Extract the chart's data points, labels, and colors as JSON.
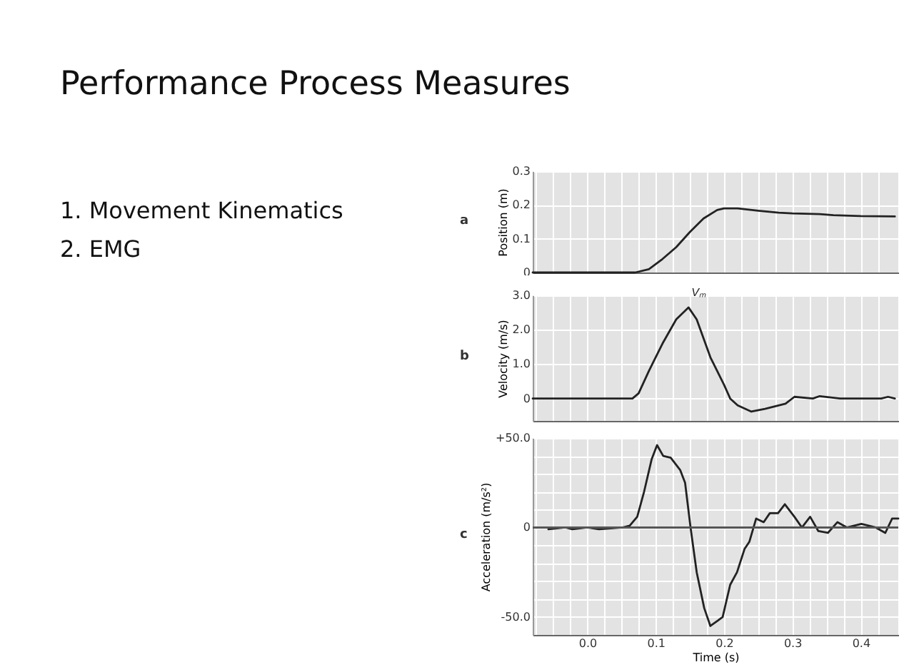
{
  "chart_data": [
    {
      "type": "line",
      "title": "Performance Process Measures",
      "annotations": [
        "1. Movement Kinematics",
        "2. EMG",
        "a"
      ],
      "ylabel": "Position (m)",
      "tick_labels": "y",
      "grid": true,
      "xlim": [
        -0.08,
        0.455
      ],
      "xticks": [
        {
          "value": -0.075,
          "label": null
        },
        {
          "value": -0.05,
          "label": null
        },
        {
          "value": -0.025,
          "label": null
        },
        0,
        {
          "value": 0.025,
          "label": null
        },
        {
          "value": 0.05,
          "label": null
        },
        {
          "value": 0.075,
          "label": null
        },
        0.1,
        {
          "value": 0.125,
          "label": null
        },
        {
          "value": 0.15,
          "label": null
        },
        {
          "value": 0.175,
          "label": null
        },
        0.2,
        {
          "value": 0.225,
          "label": null
        },
        {
          "value": 0.25,
          "label": null
        },
        {
          "value": 0.275,
          "label": null
        },
        0.3,
        {
          "value": 0.325,
          "label": null
        },
        {
          "value": 0.35,
          "label": null
        },
        {
          "value": 0.375,
          "label": null
        },
        0.4,
        {
          "value": 0.425,
          "label": null
        }
      ],
      "ylim": [
        0,
        0.3
      ],
      "yticks": [
        0,
        0.1,
        0.2,
        0.3
      ],
      "series": [
        {
          "color": "#222222",
          "x": [
            -0.08,
            0.07,
            0.09,
            0.11,
            0.13,
            0.15,
            0.17,
            0.19,
            0.2,
            0.22,
            0.25,
            0.28,
            0.3,
            0.34,
            0.36,
            0.4,
            0.45
          ],
          "values": [
            0,
            0,
            0.01,
            0.04,
            0.075,
            0.12,
            0.16,
            0.185,
            0.19,
            0.19,
            0.183,
            0.177,
            0.175,
            0.173,
            0.17,
            0.167,
            0.166
          ]
        }
      ]
    },
    {
      "type": "line",
      "annotations": [
        {
          "text": "Vₘ",
          "x": 0.148,
          "y": 2.65
        },
        "b"
      ],
      "ylabel": "Velocity (m/s)",
      "tick_labels": "y",
      "grid": true,
      "xlim": [
        -0.08,
        0.455
      ],
      "xticks": [
        {
          "value": -0.075,
          "label": null
        },
        {
          "value": -0.05,
          "label": null
        },
        {
          "value": -0.025,
          "label": null
        },
        0,
        {
          "value": 0.025,
          "label": null
        },
        {
          "value": 0.05,
          "label": null
        },
        {
          "value": 0.075,
          "label": null
        },
        0.1,
        {
          "value": 0.125,
          "label": null
        },
        {
          "value": 0.15,
          "label": null
        },
        {
          "value": 0.175,
          "label": null
        },
        0.2,
        {
          "value": 0.225,
          "label": null
        },
        {
          "value": 0.25,
          "label": null
        },
        {
          "value": 0.275,
          "label": null
        },
        0.3,
        {
          "value": 0.325,
          "label": null
        },
        {
          "value": 0.35,
          "label": null
        },
        {
          "value": 0.375,
          "label": null
        },
        0.4,
        {
          "value": 0.425,
          "label": null
        }
      ],
      "ylim": [
        -0.65,
        3.0
      ],
      "yticks": [
        0,
        {
          "value": 1,
          "label": "1.0"
        },
        {
          "value": 2,
          "label": "2.0"
        },
        {
          "value": 3,
          "label": "3.0"
        }
      ],
      "series": [
        {
          "color": "#222222",
          "x": [
            -0.08,
            0.066,
            0.075,
            0.09,
            0.11,
            0.13,
            0.148,
            0.16,
            0.18,
            0.2,
            0.209,
            0.22,
            0.24,
            0.26,
            0.29,
            0.303,
            0.33,
            0.34,
            0.37,
            0.43,
            0.44,
            0.45
          ],
          "values": [
            0,
            0,
            0.15,
            0.8,
            1.6,
            2.3,
            2.65,
            2.3,
            1.2,
            0.4,
            0,
            -0.2,
            -0.38,
            -0.3,
            -0.15,
            0.05,
            0,
            0.07,
            0,
            0,
            0.05,
            0
          ]
        }
      ]
    },
    {
      "type": "line",
      "annotations": [
        "c"
      ],
      "xlabel": "Time (s)",
      "ylabel": "Acceleration (m/s²)",
      "grid": true,
      "xlim": [
        -0.08,
        0.455
      ],
      "xticks": [
        {
          "value": -0.075,
          "label": null
        },
        {
          "value": -0.05,
          "label": null
        },
        {
          "value": -0.025,
          "label": null
        },
        {
          "value": 0,
          "label": "0.0"
        },
        {
          "value": 0.025,
          "label": null
        },
        {
          "value": 0.05,
          "label": null
        },
        {
          "value": 0.075,
          "label": null
        },
        0.1,
        {
          "value": 0.125,
          "label": null
        },
        {
          "value": 0.15,
          "label": null
        },
        {
          "value": 0.175,
          "label": null
        },
        0.2,
        {
          "value": 0.225,
          "label": null
        },
        {
          "value": 0.25,
          "label": null
        },
        {
          "value": 0.275,
          "label": null
        },
        0.3,
        {
          "value": 0.325,
          "label": null
        },
        {
          "value": 0.35,
          "label": null
        },
        {
          "value": 0.375,
          "label": null
        },
        0.4,
        {
          "value": 0.425,
          "label": null
        }
      ],
      "ylim": [
        -60,
        50
      ],
      "yticks": [
        {
          "value": -50,
          "label": "-50.0"
        },
        {
          "value": -40,
          "label": null
        },
        {
          "value": -30,
          "label": null
        },
        {
          "value": -20,
          "label": null
        },
        {
          "value": -10,
          "label": null
        },
        0,
        {
          "value": 10,
          "label": null
        },
        {
          "value": 20,
          "label": null
        },
        {
          "value": 30,
          "label": null
        },
        {
          "value": 40,
          "label": null
        },
        {
          "value": 50,
          "label": "+50.0"
        }
      ],
      "ref_lines": [
        {
          "axis": "y",
          "value": 0,
          "color": "#555555"
        }
      ],
      "series": [
        {
          "color": "#222222",
          "x": [
            -0.057,
            -0.032,
            -0.022,
            0.0,
            0.017,
            0.052,
            0.062,
            0.073,
            0.083,
            0.094,
            0.102,
            0.111,
            0.122,
            0.136,
            0.143,
            0.151,
            0.16,
            0.171,
            0.18,
            0.191,
            0.198,
            0.209,
            0.219,
            0.23,
            0.237,
            0.247,
            0.258,
            0.267,
            0.279,
            0.289,
            0.303,
            0.314,
            0.326,
            0.338,
            0.352,
            0.366,
            0.38,
            0.401,
            0.422,
            0.436,
            0.446,
            0.455
          ],
          "values": [
            -1,
            0,
            -1,
            0,
            -1,
            0,
            1,
            6,
            20,
            38,
            46,
            40,
            39,
            32,
            25,
            0,
            -25,
            -45,
            -55,
            -52,
            -50,
            -32,
            -25,
            -12,
            -8,
            5,
            3,
            8,
            8,
            13,
            6,
            0,
            6,
            -2,
            -3,
            3,
            0,
            2,
            0,
            -3,
            5,
            5
          ]
        }
      ]
    }
  ]
}
